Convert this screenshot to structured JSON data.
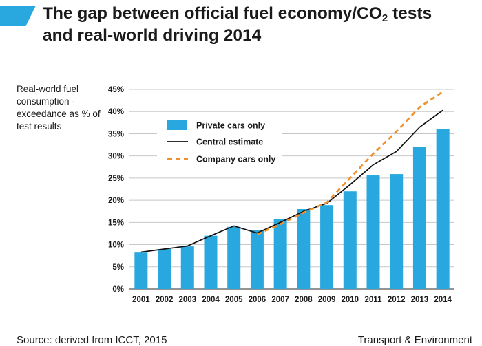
{
  "header": {
    "title_line1": "The gap between official fuel economy/CO",
    "title_sub": "2",
    "title_line1_end": " tests",
    "title_line2": "and real-world driving 2014"
  },
  "footer": {
    "source": "Source: derived from ICCT, 2015",
    "publisher": "Transport & Environment"
  },
  "colors": {
    "bar": "#29a8df",
    "central": "#111111",
    "company": "#f0912d",
    "accent": "#29a8df"
  },
  "chart_data": {
    "type": "bar",
    "title": "The gap between official fuel economy/CO2 tests and real-world driving 2014",
    "xlabel": "",
    "ylabel": "Real-world fuel consumption - exceedance as % of test results",
    "ylim": [
      0,
      45
    ],
    "yticks": [
      0,
      5,
      10,
      15,
      20,
      25,
      30,
      35,
      40,
      45
    ],
    "ytick_labels": [
      "0%",
      "5%",
      "10%",
      "15%",
      "20%",
      "25%",
      "30%",
      "35%",
      "40%",
      "45%"
    ],
    "grid": true,
    "legend_position": "upper-left",
    "categories": [
      "2001",
      "2002",
      "2003",
      "2004",
      "2005",
      "2006",
      "2007",
      "2008",
      "2009",
      "2010",
      "2011",
      "2012",
      "2013",
      "2014"
    ],
    "series": [
      {
        "name": "Private cars only",
        "kind": "bar",
        "values": [
          8.2,
          9.0,
          9.6,
          12.0,
          14.0,
          13.3,
          15.7,
          18.0,
          18.9,
          22.0,
          25.6,
          25.9,
          32.0,
          36.0
        ]
      },
      {
        "name": "Central estimate",
        "kind": "line",
        "values": [
          8.3,
          9.0,
          9.7,
          12.0,
          14.2,
          12.6,
          15.0,
          17.5,
          19.3,
          23.5,
          28.0,
          31.0,
          36.5,
          40.3
        ]
      },
      {
        "name": "Company cars only",
        "kind": "dashed-line",
        "values": [
          null,
          null,
          null,
          null,
          null,
          12.3,
          14.6,
          17.2,
          19.5,
          25.0,
          30.5,
          35.5,
          41.0,
          44.5
        ]
      }
    ]
  }
}
